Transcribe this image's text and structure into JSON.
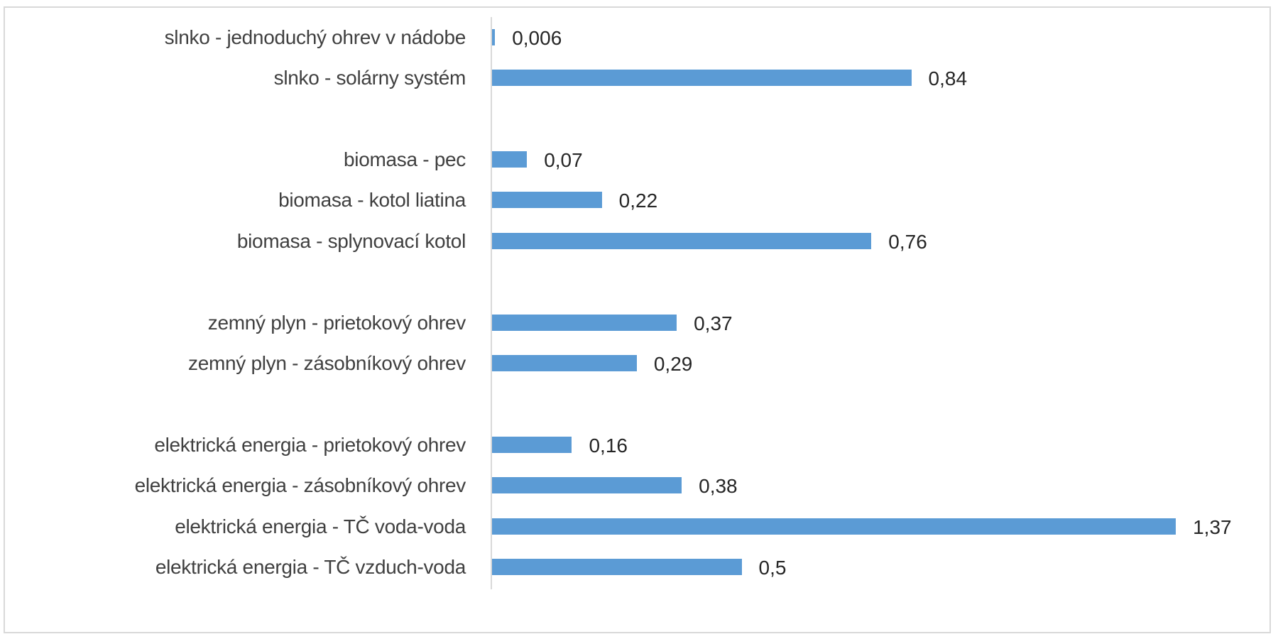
{
  "chart_data": {
    "type": "bar",
    "orientation": "horizontal",
    "title": "",
    "xlabel": "",
    "ylabel": "",
    "grid": false,
    "legend": null,
    "bar_color": "#5b9bd5",
    "decimal_separator": ",",
    "categories": [
      "slnko - jednoduchý ohrev v nádobe",
      "slnko - solárny systém",
      "biomasa - pec",
      "biomasa - kotol liatina",
      "biomasa - splynovací kotol",
      "zemný plyn - prietokový ohrev",
      "zemný plyn - zásobníkový ohrev",
      "elektrická energia - prietokový ohrev",
      "elektrická energia - zásobníkový ohrev",
      "elektrická energia - TČ voda-voda",
      "elektrická energia - TČ vzduch-voda"
    ],
    "values": [
      0.006,
      0.84,
      0.07,
      0.22,
      0.76,
      0.37,
      0.29,
      0.16,
      0.38,
      1.37,
      0.5
    ],
    "value_labels": [
      "0,006",
      "0,84",
      "0,07",
      "0,22",
      "0,76",
      "0,37",
      "0,29",
      "0,16",
      "0,38",
      "1,37",
      "0,5"
    ],
    "groups": [
      "slnko",
      "biomasa",
      "zemný plyn",
      "elektrická energia"
    ]
  },
  "rows": [
    {
      "label": "slnko - jednoduchý ohrev v nádobe",
      "value": "0,006"
    },
    {
      "label": "slnko - solárny systém",
      "value": "0,84"
    },
    {
      "label": "biomasa - pec",
      "value": "0,07"
    },
    {
      "label": "biomasa - kotol liatina",
      "value": "0,22"
    },
    {
      "label": "biomasa - splynovací kotol",
      "value": "0,76"
    },
    {
      "label": "zemný plyn - prietokový ohrev",
      "value": "0,37"
    },
    {
      "label": "zemný plyn - zásobníkový ohrev",
      "value": "0,29"
    },
    {
      "label": "elektrická energia - prietokový ohrev",
      "value": "0,16"
    },
    {
      "label": "elektrická energia - zásobníkový ohrev",
      "value": "0,38"
    },
    {
      "label": "elektrická energia - TČ voda-voda",
      "value": "1,37"
    },
    {
      "label": "elektrická energia - TČ vzduch-voda",
      "value": "0,5"
    }
  ]
}
